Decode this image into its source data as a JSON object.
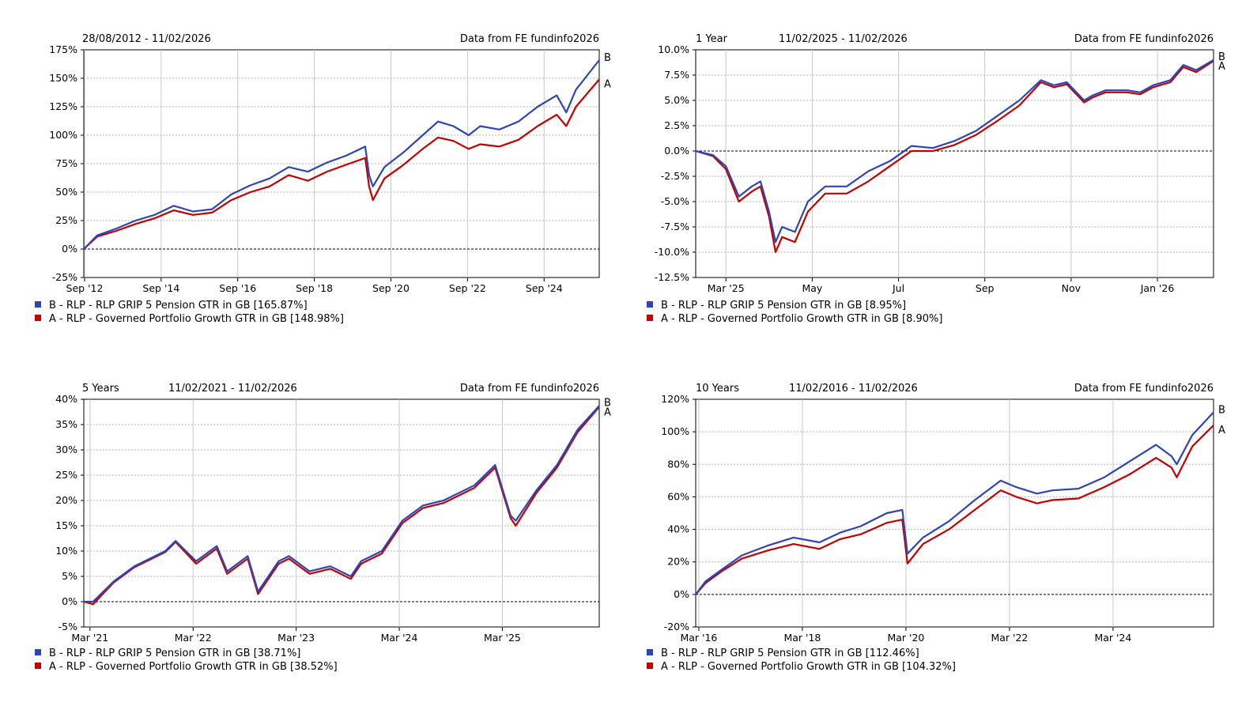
{
  "colors": {
    "series_b": "#2c45b8",
    "series_a": "#c40000"
  },
  "chart_data": [
    {
      "type": "line",
      "period_label": "",
      "date_range": "28/08/2012 - 11/02/2026",
      "source": "Data from FE fundinfo2026",
      "ylim": [
        -25,
        175
      ],
      "yticks": [
        -25,
        0,
        25,
        50,
        75,
        100,
        125,
        150,
        175
      ],
      "ytick_labels": [
        "-25%",
        "0%",
        "25%",
        "50%",
        "75%",
        "100%",
        "125%",
        "150%",
        "175%"
      ],
      "xlim": [
        2012.65,
        2026.11
      ],
      "xticks": [
        2012.67,
        2014.67,
        2016.67,
        2018.67,
        2020.67,
        2022.67,
        2024.67
      ],
      "xtick_labels": [
        "Sep '12",
        "Sep '14",
        "Sep '16",
        "Sep '18",
        "Sep '20",
        "Sep '22",
        "Sep '24"
      ],
      "series": [
        {
          "key": "B",
          "name": "B - RLP - RLP GRIP 5 Pension GTR in GB [165.87%]",
          "x": [
            2012.65,
            2013.0,
            2013.5,
            2014.0,
            2014.5,
            2015.0,
            2015.5,
            2016.0,
            2016.5,
            2017.0,
            2017.5,
            2018.0,
            2018.5,
            2019.0,
            2019.5,
            2020.0,
            2020.1,
            2020.2,
            2020.5,
            2021.0,
            2021.5,
            2021.9,
            2022.3,
            2022.7,
            2023.0,
            2023.5,
            2024.0,
            2024.5,
            2025.0,
            2025.25,
            2025.5,
            2026.11
          ],
          "y": [
            0,
            12,
            18,
            25,
            30,
            38,
            33,
            35,
            48,
            56,
            62,
            72,
            68,
            76,
            82,
            90,
            65,
            55,
            72,
            85,
            100,
            112,
            108,
            100,
            108,
            105,
            112,
            125,
            135,
            120,
            140,
            166
          ]
        },
        {
          "key": "A",
          "name": "A - RLP - Governed Portfolio Growth GTR in GB [148.98%]",
          "x": [
            2012.65,
            2013.0,
            2013.5,
            2014.0,
            2014.5,
            2015.0,
            2015.5,
            2016.0,
            2016.5,
            2017.0,
            2017.5,
            2018.0,
            2018.5,
            2019.0,
            2019.5,
            2020.0,
            2020.1,
            2020.2,
            2020.5,
            2021.0,
            2021.5,
            2021.9,
            2022.3,
            2022.7,
            2023.0,
            2023.5,
            2024.0,
            2024.5,
            2025.0,
            2025.25,
            2025.5,
            2026.11
          ],
          "y": [
            0,
            11,
            16,
            22,
            27,
            34,
            30,
            32,
            43,
            50,
            55,
            65,
            60,
            68,
            74,
            80,
            55,
            43,
            62,
            74,
            88,
            98,
            95,
            88,
            92,
            90,
            96,
            108,
            118,
            108,
            125,
            149
          ]
        }
      ]
    },
    {
      "type": "line",
      "period_label": "1 Year",
      "date_range": "11/02/2025 - 11/02/2026",
      "source": "Data from FE fundinfo2026",
      "ylim": [
        -12.5,
        10
      ],
      "yticks": [
        -12.5,
        -10,
        -7.5,
        -5,
        -2.5,
        0,
        2.5,
        5,
        7.5,
        10
      ],
      "ytick_labels": [
        "-12.5%",
        "-10.0%",
        "-7.5%",
        "-5.0%",
        "-2.5%",
        "0.0%",
        "2.5%",
        "5.0%",
        "7.5%",
        "10.0%"
      ],
      "xlim": [
        0,
        12
      ],
      "xticks": [
        0.7,
        2.7,
        4.7,
        6.7,
        8.7,
        10.7
      ],
      "xtick_labels": [
        "Mar '25",
        "May",
        "Jul",
        "Sep",
        "Nov",
        "Jan '26"
      ],
      "series": [
        {
          "key": "B",
          "name": "B - RLP - RLP GRIP 5 Pension GTR in GB [8.95%]",
          "x": [
            0,
            0.4,
            0.7,
            1.0,
            1.3,
            1.5,
            1.7,
            1.85,
            2.0,
            2.3,
            2.6,
            3.0,
            3.5,
            4.0,
            4.5,
            5.0,
            5.5,
            6.0,
            6.5,
            7.0,
            7.5,
            8.0,
            8.3,
            8.6,
            9.0,
            9.2,
            9.5,
            10.0,
            10.3,
            10.6,
            11.0,
            11.3,
            11.6,
            12.0
          ],
          "y": [
            0,
            -0.4,
            -1.5,
            -4.5,
            -3.5,
            -3.0,
            -6.0,
            -9.0,
            -7.5,
            -8.0,
            -5.0,
            -3.5,
            -3.5,
            -2.0,
            -1.0,
            0.5,
            0.3,
            1.0,
            2.0,
            3.5,
            5.0,
            7.0,
            6.5,
            6.8,
            5.0,
            5.5,
            6.0,
            6.0,
            5.8,
            6.5,
            7.0,
            8.5,
            8.0,
            9.0
          ]
        },
        {
          "key": "A",
          "name": "A - RLP - Governed Portfolio Growth GTR in GB [8.90%]",
          "x": [
            0,
            0.4,
            0.7,
            1.0,
            1.3,
            1.5,
            1.7,
            1.85,
            2.0,
            2.3,
            2.6,
            3.0,
            3.5,
            4.0,
            4.5,
            5.0,
            5.5,
            6.0,
            6.5,
            7.0,
            7.5,
            8.0,
            8.3,
            8.6,
            9.0,
            9.2,
            9.5,
            10.0,
            10.3,
            10.6,
            11.0,
            11.3,
            11.6,
            12.0
          ],
          "y": [
            0,
            -0.5,
            -1.8,
            -5.0,
            -4.0,
            -3.5,
            -6.5,
            -10.0,
            -8.5,
            -9.0,
            -6.0,
            -4.2,
            -4.2,
            -3.0,
            -1.5,
            0.0,
            0.0,
            0.6,
            1.6,
            3.0,
            4.5,
            6.8,
            6.3,
            6.6,
            4.8,
            5.3,
            5.8,
            5.8,
            5.6,
            6.3,
            6.8,
            8.3,
            7.8,
            8.9
          ]
        }
      ]
    },
    {
      "type": "line",
      "period_label": "5 Years",
      "date_range": "11/02/2021 - 11/02/2026",
      "source": "Data from FE fundinfo2026",
      "ylim": [
        -5,
        40
      ],
      "yticks": [
        -5,
        0,
        5,
        10,
        15,
        20,
        25,
        30,
        35,
        40
      ],
      "ytick_labels": [
        "-5%",
        "0%",
        "5%",
        "10%",
        "15%",
        "20%",
        "25%",
        "30%",
        "35%",
        "40%"
      ],
      "xlim": [
        2021.11,
        2026.11
      ],
      "xticks": [
        2021.17,
        2022.17,
        2023.17,
        2024.17,
        2025.17
      ],
      "xtick_labels": [
        "Mar '21",
        "Mar '22",
        "Mar '23",
        "Mar '24",
        "Mar '25"
      ],
      "series": [
        {
          "key": "B",
          "name": "B - RLP - RLP GRIP 5 Pension GTR in GB [38.71%]",
          "x": [
            2021.11,
            2021.2,
            2021.4,
            2021.6,
            2021.9,
            2022.0,
            2022.2,
            2022.4,
            2022.5,
            2022.7,
            2022.8,
            2023.0,
            2023.1,
            2023.3,
            2023.5,
            2023.7,
            2023.8,
            2024.0,
            2024.2,
            2024.4,
            2024.6,
            2024.9,
            2025.1,
            2025.25,
            2025.3,
            2025.5,
            2025.7,
            2025.9,
            2026.11
          ],
          "y": [
            0,
            0,
            4,
            7,
            10,
            12,
            8,
            11,
            6,
            9,
            2,
            8,
            9,
            6,
            7,
            5,
            8,
            10,
            16,
            19,
            20,
            23,
            27,
            17,
            16,
            22,
            27,
            34,
            38.7
          ]
        },
        {
          "key": "A",
          "name": "A - RLP - Governed Portfolio Growth GTR in GB [38.52%]",
          "x": [
            2021.11,
            2021.2,
            2021.4,
            2021.6,
            2021.9,
            2022.0,
            2022.2,
            2022.4,
            2022.5,
            2022.7,
            2022.8,
            2023.0,
            2023.1,
            2023.3,
            2023.5,
            2023.7,
            2023.8,
            2024.0,
            2024.2,
            2024.4,
            2024.6,
            2024.9,
            2025.1,
            2025.25,
            2025.3,
            2025.5,
            2025.7,
            2025.9,
            2026.11
          ],
          "y": [
            0,
            -0.5,
            3.8,
            6.8,
            9.8,
            11.8,
            7.5,
            10.5,
            5.5,
            8.5,
            1.5,
            7.5,
            8.5,
            5.5,
            6.5,
            4.5,
            7.5,
            9.5,
            15.5,
            18.5,
            19.5,
            22.5,
            26.5,
            16.5,
            15,
            21.5,
            26.5,
            33.5,
            38.5
          ]
        }
      ]
    },
    {
      "type": "line",
      "period_label": "10 Years",
      "date_range": "11/02/2016 - 11/02/2026",
      "source": "Data from FE fundinfo2026",
      "ylim": [
        -20,
        120
      ],
      "yticks": [
        -20,
        0,
        20,
        40,
        60,
        80,
        100,
        120
      ],
      "ytick_labels": [
        "-20%",
        "0%",
        "20%",
        "40%",
        "60%",
        "80%",
        "100%",
        "120%"
      ],
      "xlim": [
        2016.11,
        2026.11
      ],
      "xticks": [
        2016.17,
        2018.17,
        2020.17,
        2022.17,
        2024.17
      ],
      "xtick_labels": [
        "Mar '16",
        "Mar '18",
        "Mar '20",
        "Mar '22",
        "Mar '24"
      ],
      "series": [
        {
          "key": "B",
          "name": "B - RLP - RLP GRIP 5 Pension GTR in GB [112.46%]",
          "x": [
            2016.11,
            2016.3,
            2016.6,
            2017.0,
            2017.5,
            2018.0,
            2018.5,
            2018.9,
            2019.3,
            2019.8,
            2020.1,
            2020.2,
            2020.5,
            2021.0,
            2021.5,
            2022.0,
            2022.3,
            2022.7,
            2023.0,
            2023.5,
            2024.0,
            2024.5,
            2025.0,
            2025.3,
            2025.4,
            2025.7,
            2026.11
          ],
          "y": [
            0,
            8,
            15,
            24,
            30,
            35,
            32,
            38,
            42,
            50,
            52,
            25,
            35,
            45,
            58,
            70,
            66,
            62,
            64,
            65,
            72,
            82,
            92,
            85,
            80,
            98,
            112
          ]
        },
        {
          "key": "A",
          "name": "A - RLP - Governed Portfolio Growth GTR in GB [104.32%]",
          "x": [
            2016.11,
            2016.3,
            2016.6,
            2017.0,
            2017.5,
            2018.0,
            2018.5,
            2018.9,
            2019.3,
            2019.8,
            2020.1,
            2020.2,
            2020.5,
            2021.0,
            2021.5,
            2022.0,
            2022.3,
            2022.7,
            2023.0,
            2023.5,
            2024.0,
            2024.5,
            2025.0,
            2025.3,
            2025.4,
            2025.7,
            2026.11
          ],
          "y": [
            0,
            7,
            14,
            22,
            27,
            31,
            28,
            34,
            37,
            44,
            46,
            19,
            31,
            40,
            52,
            64,
            60,
            56,
            58,
            59,
            66,
            74,
            84,
            78,
            72,
            91,
            104
          ]
        }
      ]
    }
  ]
}
